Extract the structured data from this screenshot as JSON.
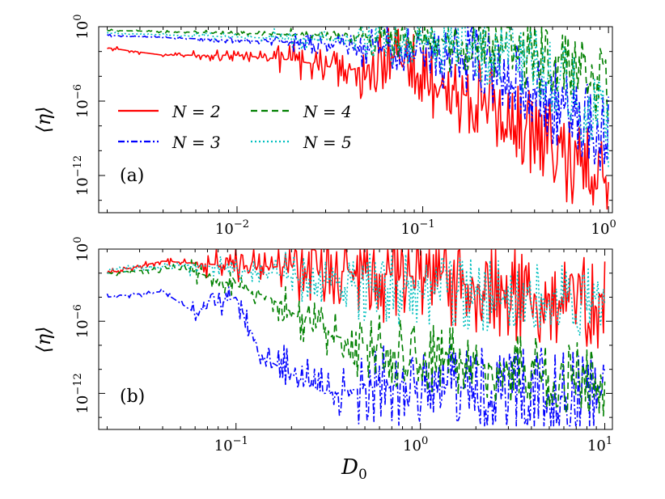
{
  "chart_data": [
    {
      "type": "line",
      "panel_label": "(a)",
      "xlabel": "",
      "ylabel": "⟨η⟩",
      "xscale": "log",
      "yscale": "log",
      "xlim": [
        0.0018,
        1.05
      ],
      "ylim": [
        1e-15,
        1.0
      ],
      "x_ticks": [
        0.01,
        0.1,
        1
      ],
      "x_tick_labels": [
        "10",
        "10",
        "10"
      ],
      "x_tick_exponents": [
        "−2",
        "−1",
        "0"
      ],
      "y_ticks": [
        1.0,
        1e-06,
        1e-12
      ],
      "y_tick_labels": [
        "10",
        "10",
        "10"
      ],
      "y_tick_exponents": [
        "0",
        "−6",
        "−12"
      ],
      "legend": {
        "placement": "center-left",
        "columns": 2
      },
      "series": [
        {
          "name": "N = 2",
          "color": "#ff0000",
          "dash": "solid",
          "anchors": [
            [
              0.002,
              0.02
            ],
            [
              0.004,
              0.005
            ],
            [
              0.01,
              0.005
            ],
            [
              0.02,
              0.002
            ],
            [
              0.04,
              0.0003
            ],
            [
              0.07,
              0.003
            ],
            [
              0.1,
              0.0001
            ],
            [
              0.2,
              1e-06
            ],
            [
              0.5,
              1e-10
            ],
            [
              1.0,
              1e-13
            ]
          ],
          "spread": [
            0.2,
            0.5,
            1.5,
            3.0,
            3.5,
            4.0
          ]
        },
        {
          "name": "N = 3",
          "color": "#0000ff",
          "dash": "dashdot",
          "anchors": [
            [
              0.002,
              0.2
            ],
            [
              0.01,
              0.08
            ],
            [
              0.03,
              0.04
            ],
            [
              0.08,
              0.02
            ],
            [
              0.2,
              0.003
            ],
            [
              0.4,
              1e-05
            ],
            [
              1.0,
              1e-09
            ]
          ],
          "spread": [
            0.1,
            0.3,
            0.8,
            2.0,
            3.0,
            3.5
          ]
        },
        {
          "name": "N = 4",
          "color": "#008000",
          "dash": "dashed",
          "anchors": [
            [
              0.002,
              0.5
            ],
            [
              0.01,
              0.3
            ],
            [
              0.03,
              0.2
            ],
            [
              0.08,
              0.1
            ],
            [
              0.2,
              0.05
            ],
            [
              0.4,
              0.005
            ],
            [
              0.7,
              0.0001
            ],
            [
              1.0,
              1e-05
            ]
          ],
          "spread": [
            0.1,
            0.2,
            0.5,
            1.5,
            2.5,
            3.0
          ]
        },
        {
          "name": "N = 5",
          "color": "#00bfbf",
          "dash": "dotted",
          "anchors": [
            [
              0.002,
              0.3
            ],
            [
              0.01,
              0.15
            ],
            [
              0.03,
              0.08
            ],
            [
              0.1,
              0.04
            ],
            [
              0.3,
              0.005
            ],
            [
              0.6,
              1e-05
            ],
            [
              1.0,
              1e-08
            ]
          ],
          "spread": [
            0.1,
            0.3,
            0.8,
            2.0,
            3.0,
            3.5
          ]
        }
      ]
    },
    {
      "type": "line",
      "panel_label": "(b)",
      "xlabel": "D0",
      "ylabel": "⟨η⟩",
      "xscale": "log",
      "yscale": "log",
      "xlim": [
        0.018,
        11.0
      ],
      "ylim": [
        1e-15,
        1.0
      ],
      "x_ticks": [
        0.1,
        1,
        10
      ],
      "x_tick_labels": [
        "10",
        "10",
        "10"
      ],
      "x_tick_exponents": [
        "−1",
        "0",
        "1"
      ],
      "y_ticks": [
        1.0,
        1e-06,
        1e-12
      ],
      "y_tick_labels": [
        "10",
        "10",
        "10"
      ],
      "y_tick_exponents": [
        "0",
        "−6",
        "−12"
      ],
      "series": [
        {
          "name": "N = 2",
          "color": "#ff0000",
          "dash": "solid",
          "anchors": [
            [
              0.02,
              0.01
            ],
            [
              0.04,
              0.1
            ],
            [
              0.08,
              0.05
            ],
            [
              0.2,
              0.03
            ],
            [
              0.5,
              0.01
            ],
            [
              1.0,
              0.005
            ],
            [
              3.0,
              0.0003
            ],
            [
              10.0,
              1e-05
            ]
          ],
          "spread": [
            0.3,
            1.5,
            3.0,
            4.0,
            4.0,
            4.0
          ]
        },
        {
          "name": "N = 3",
          "color": "#0000ff",
          "dash": "dashdot",
          "anchors": [
            [
              0.02,
              0.0001
            ],
            [
              0.04,
              0.0003
            ],
            [
              0.06,
              5e-06
            ],
            [
              0.1,
              0.0001
            ],
            [
              0.14,
              1e-09
            ],
            [
              0.3,
              1e-12
            ],
            [
              1.0,
              1e-11
            ],
            [
              3.0,
              1e-12
            ],
            [
              10.0,
              3e-13
            ]
          ],
          "spread": [
            0.3,
            1.2,
            2.5,
            3.5,
            3.5,
            4.0
          ]
        },
        {
          "name": "N = 4",
          "color": "#008000",
          "dash": "dashed",
          "anchors": [
            [
              0.02,
              0.01
            ],
            [
              0.05,
              0.03
            ],
            [
              0.08,
              0.003
            ],
            [
              0.15,
              0.0001
            ],
            [
              0.3,
              1e-07
            ],
            [
              1.0,
              1e-09
            ],
            [
              3.0,
              1e-10
            ],
            [
              10.0,
              1e-11
            ]
          ],
          "spread": [
            0.3,
            1.0,
            2.0,
            3.0,
            3.0,
            3.0
          ]
        },
        {
          "name": "N = 5",
          "color": "#00bfbf",
          "dash": "dotted",
          "anchors": [
            [
              0.02,
              0.02
            ],
            [
              0.06,
              0.05
            ],
            [
              0.15,
              0.01
            ],
            [
              0.4,
              0.001
            ],
            [
              1.0,
              0.0003
            ],
            [
              3.0,
              0.0001
            ],
            [
              10.0,
              3e-05
            ]
          ],
          "spread": [
            0.3,
            1.0,
            2.0,
            3.0,
            3.0,
            3.0
          ]
        }
      ]
    }
  ]
}
